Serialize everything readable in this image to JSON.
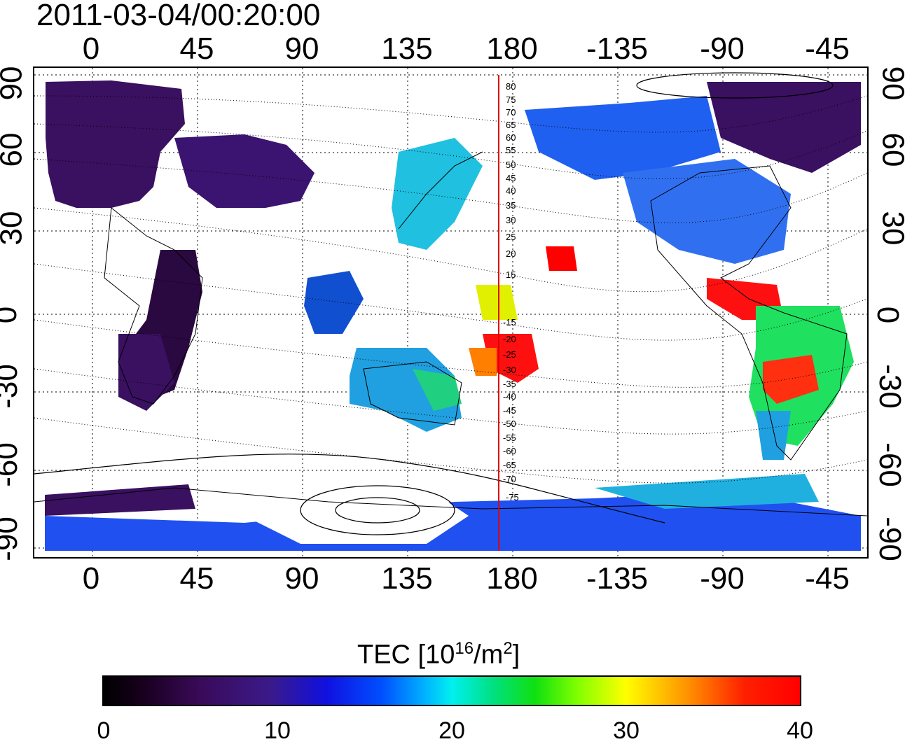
{
  "timestamp": "2011-03-04/00:20:00",
  "x_ticks": [
    "0",
    "45",
    "90",
    "135",
    "180",
    "-135",
    "-90",
    "-45"
  ],
  "y_ticks": [
    "90",
    "60",
    "30",
    "0",
    "-30",
    "-60",
    "-90"
  ],
  "contour_labels": [
    "80",
    "75",
    "70",
    "65",
    "60",
    "55",
    "50",
    "45",
    "40",
    "35",
    "30",
    "25",
    "20",
    "15",
    "-15",
    "-20",
    "-25",
    "-30",
    "-35",
    "-40",
    "-45",
    "-50",
    "-55",
    "-60",
    "-65",
    "-70",
    "-75"
  ],
  "colorbar": {
    "title_prefix": "TEC  [10",
    "title_exp": "16",
    "title_mid": "/m",
    "title_exp2": "2",
    "title_suffix": "]",
    "labels": [
      "0",
      "10",
      "20",
      "30",
      "40"
    ]
  },
  "colors": {
    "low": "#000000",
    "purple": "#3a0a5a",
    "blue": "#1010e0",
    "cyan": "#00f0f0",
    "green": "#10e010",
    "yellow": "#ffff00",
    "red": "#ff0000",
    "meridian_line": "#e00000"
  }
}
